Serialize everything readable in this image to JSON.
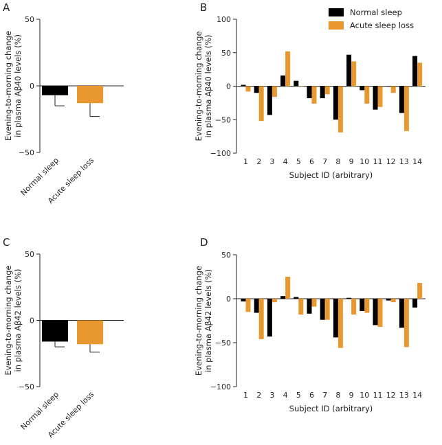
{
  "colors": {
    "normal": "#000000",
    "acute": "#E8982E"
  },
  "chart_data": [
    {
      "panel": "A",
      "type": "bar",
      "categories": [
        "Normal sleep",
        "Acute sleep loss"
      ],
      "values": [
        -7,
        -13
      ],
      "errors": [
        8,
        10
      ],
      "ylabel_lines": [
        "Evening-to-morning change",
        "in plasma Aβ40 levels (%)"
      ],
      "yticks": [
        50,
        0,
        -50
      ],
      "ylim": [
        -50,
        50
      ]
    },
    {
      "panel": "B",
      "type": "bar",
      "categories": [
        "1",
        "2",
        "3",
        "4",
        "5",
        "6",
        "7",
        "8",
        "9",
        "10",
        "11",
        "12",
        "13",
        "14"
      ],
      "series": [
        {
          "name": "Normal sleep",
          "values": [
            2,
            -10,
            -43,
            16,
            8,
            -18,
            -18,
            -50,
            47,
            -6,
            -35,
            0,
            -40,
            45
          ]
        },
        {
          "name": "Acute sleep loss",
          "values": [
            -8,
            -52,
            -16,
            52,
            0,
            -26,
            -12,
            -69,
            37,
            -26,
            -31,
            -10,
            -67,
            35
          ]
        }
      ],
      "xlabel": "Subject ID (arbitrary)",
      "ylabel_lines": [
        "Evening-to-morning change",
        "in plasma Aβ40 levels (%)"
      ],
      "yticks": [
        100,
        50,
        0,
        -50,
        -100
      ],
      "ylim": [
        -100,
        100
      ],
      "legend": [
        "Normal sleep",
        "Acute sleep loss"
      ]
    },
    {
      "panel": "C",
      "type": "bar",
      "categories": [
        "Normal sleep",
        "Acute sleep loss"
      ],
      "values": [
        -16,
        -18
      ],
      "errors": [
        4,
        6
      ],
      "ylabel_lines": [
        "Evening-to-morning change",
        "in plasma Aβ42 levels (%)"
      ],
      "yticks": [
        50,
        0,
        -50
      ],
      "ylim": [
        -50,
        50
      ]
    },
    {
      "panel": "D",
      "type": "bar",
      "categories": [
        "1",
        "2",
        "3",
        "4",
        "5",
        "6",
        "7",
        "8",
        "9",
        "10",
        "11",
        "12",
        "13",
        "14"
      ],
      "series": [
        {
          "name": "Normal sleep",
          "values": [
            -3,
            -16,
            -43,
            3,
            2,
            -17,
            -24,
            -44,
            1,
            -14,
            -30,
            -2,
            -33,
            -10
          ]
        },
        {
          "name": "Acute sleep loss",
          "values": [
            -15,
            -46,
            -4,
            25,
            -18,
            -9,
            -24,
            -56,
            -18,
            -16,
            -32,
            -4,
            -55,
            18
          ]
        }
      ],
      "xlabel": "Subject ID (arbitrary)",
      "ylabel_lines": [
        "Evening-to-morning change",
        "in plasma Aβ42 levels (%)"
      ],
      "yticks": [
        50,
        0,
        -50,
        -100
      ],
      "ylim": [
        -100,
        50
      ]
    }
  ]
}
